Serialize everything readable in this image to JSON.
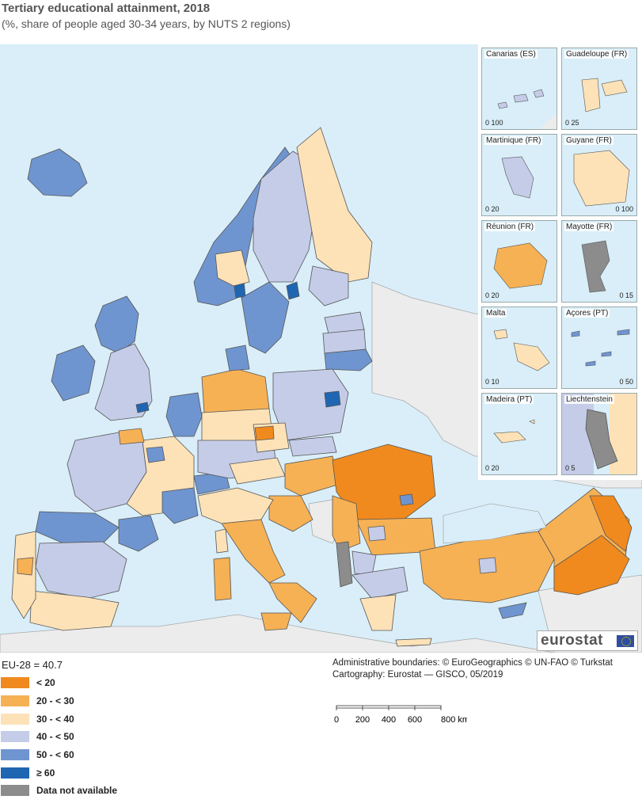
{
  "title": "Tertiary educational attainment, 2018",
  "subtitle": "(%, share of people aged 30-34 years, by NUTS 2 regions)",
  "eu_average": "EU-28 = 40.7",
  "legend": [
    {
      "label": "< 20",
      "color": "#f08a1e"
    },
    {
      "label": "20 - < 30",
      "color": "#f6b155"
    },
    {
      "label": "30 - < 40",
      "color": "#fde2b8"
    },
    {
      "label": "40 - < 50",
      "color": "#c5cce8"
    },
    {
      "label": "50 - < 60",
      "color": "#6f95d0"
    },
    {
      "label": "≥ 60",
      "color": "#1f66b2"
    },
    {
      "label": "Data not available",
      "color": "#8c8c8c"
    }
  ],
  "credits": {
    "line1": "Administrative boundaries: © EuroGeographics © UN-FAO © Turkstat",
    "line2": "Cartography: Eurostat — GISCO, 05/2019"
  },
  "scale": {
    "ticks": [
      "0",
      "200",
      "400",
      "600",
      "800 km"
    ]
  },
  "logo": "eurostat",
  "insets": [
    {
      "name": "Canarias (ES)",
      "scale": [
        "0",
        "100"
      ]
    },
    {
      "name": "Guadeloupe (FR)",
      "scale": [
        "0",
        "25"
      ]
    },
    {
      "name": "Martinique (FR)",
      "scale": [
        "0",
        "20"
      ]
    },
    {
      "name": "Guyane (FR)",
      "scale": [
        "0",
        "100"
      ]
    },
    {
      "name": "Réunion (FR)",
      "scale": [
        "0",
        "20"
      ]
    },
    {
      "name": "Mayotte (FR)",
      "scale": [
        "0",
        "15"
      ]
    },
    {
      "name": "Malta",
      "scale": [
        "0",
        "10"
      ]
    },
    {
      "name": "Açores (PT)",
      "scale": [
        "0",
        "50"
      ]
    },
    {
      "name": "Madeira (PT)",
      "scale": [
        "0",
        "20"
      ]
    },
    {
      "name": "Liechtenstein",
      "scale": [
        "0",
        "5"
      ]
    }
  ]
}
